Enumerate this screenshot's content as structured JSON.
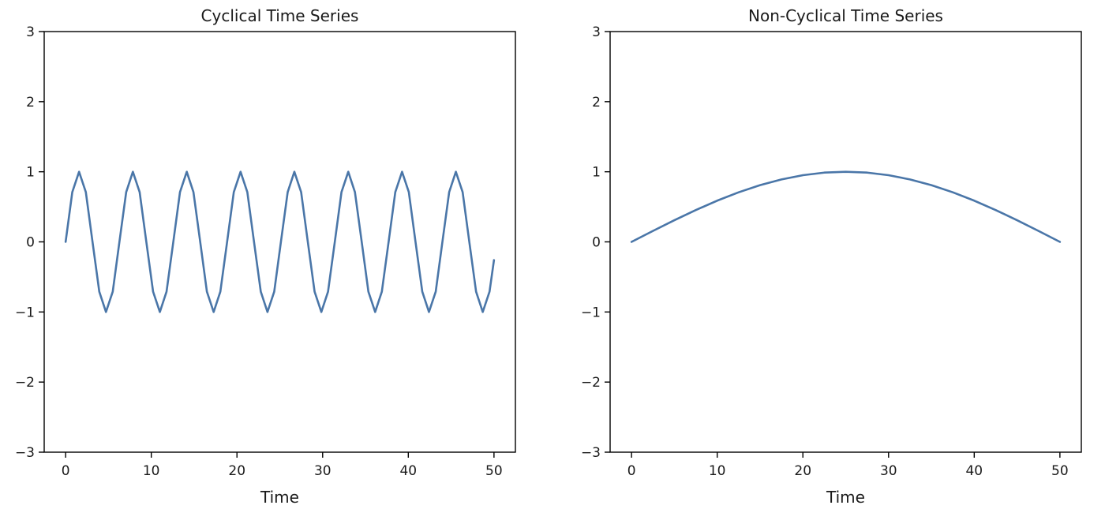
{
  "chart_data": [
    {
      "type": "line",
      "title": "Cyclical Time Series",
      "xlabel": "Time",
      "ylabel": "",
      "xlim": [
        -2.5,
        52.5
      ],
      "ylim": [
        -3,
        3
      ],
      "xticks": [
        0,
        10,
        20,
        30,
        40,
        50
      ],
      "yticks": [
        -3,
        -2,
        -1,
        0,
        1,
        2,
        3
      ],
      "xtick_labels": [
        "0",
        "10",
        "20",
        "30",
        "40",
        "50"
      ],
      "ytick_labels": [
        "−3",
        "−2",
        "−1",
        "0",
        "1",
        "2",
        "3"
      ],
      "grid": false,
      "legend": "none",
      "series": [
        {
          "color": "#4a76a8",
          "x": [
            0,
            0.78,
            1.57,
            2.36,
            3.14,
            3.93,
            4.71,
            5.5,
            6.28,
            7.07,
            7.85,
            8.64,
            9.42,
            10.21,
            11.0,
            11.78,
            12.57,
            13.35,
            14.14,
            14.92,
            15.71,
            16.49,
            17.28,
            18.06,
            18.85,
            19.63,
            20.42,
            21.21,
            21.99,
            22.78,
            23.56,
            24.35,
            25.13,
            25.92,
            26.7,
            27.49,
            28.27,
            29.06,
            29.85,
            30.63,
            31.42,
            32.2,
            32.99,
            33.77,
            34.56,
            35.34,
            36.13,
            36.91,
            37.7,
            38.48,
            39.27,
            40.06,
            40.84,
            41.63,
            42.41,
            43.2,
            43.98,
            44.77,
            45.55,
            46.34,
            47.12,
            47.91,
            48.69,
            49.48,
            50.0
          ],
          "y": [
            0,
            0.71,
            1.0,
            0.71,
            0,
            -0.71,
            -1.0,
            -0.71,
            0,
            0.71,
            1.0,
            0.71,
            0,
            -0.71,
            -1.0,
            -0.71,
            0,
            0.71,
            1.0,
            0.71,
            0,
            -0.71,
            -1.0,
            -0.71,
            0,
            0.71,
            1.0,
            0.71,
            0,
            -0.71,
            -1.0,
            -0.71,
            0,
            0.71,
            1.0,
            0.71,
            0,
            -0.71,
            -1.0,
            -0.71,
            0,
            0.71,
            1.0,
            0.71,
            0,
            -0.71,
            -1.0,
            -0.71,
            0,
            0.71,
            1.0,
            0.71,
            0,
            -0.71,
            -1.0,
            -0.71,
            0,
            0.71,
            1.0,
            0.71,
            0,
            -0.71,
            -1.0,
            -0.71,
            -0.26
          ]
        }
      ]
    },
    {
      "type": "line",
      "title": "Non-Cyclical Time Series",
      "xlabel": "Time",
      "ylabel": "",
      "xlim": [
        -2.5,
        52.5
      ],
      "ylim": [
        -3,
        3
      ],
      "xticks": [
        0,
        10,
        20,
        30,
        40,
        50
      ],
      "yticks": [
        -3,
        -2,
        -1,
        0,
        1,
        2,
        3
      ],
      "xtick_labels": [
        "0",
        "10",
        "20",
        "30",
        "40",
        "50"
      ],
      "ytick_labels": [
        "−3",
        "−2",
        "−1",
        "0",
        "1",
        "2",
        "3"
      ],
      "grid": false,
      "legend": "none",
      "series": [
        {
          "color": "#4a76a8",
          "x": [
            0,
            2.5,
            5,
            7.5,
            10,
            12.5,
            15,
            17.5,
            20,
            22.5,
            25,
            27.5,
            30,
            32.5,
            35,
            37.5,
            40,
            42.5,
            45,
            47.5,
            50
          ],
          "y": [
            0,
            0.156,
            0.309,
            0.454,
            0.588,
            0.707,
            0.809,
            0.891,
            0.951,
            0.988,
            1.0,
            0.988,
            0.951,
            0.891,
            0.809,
            0.707,
            0.588,
            0.454,
            0.309,
            0.156,
            0
          ]
        }
      ]
    }
  ]
}
